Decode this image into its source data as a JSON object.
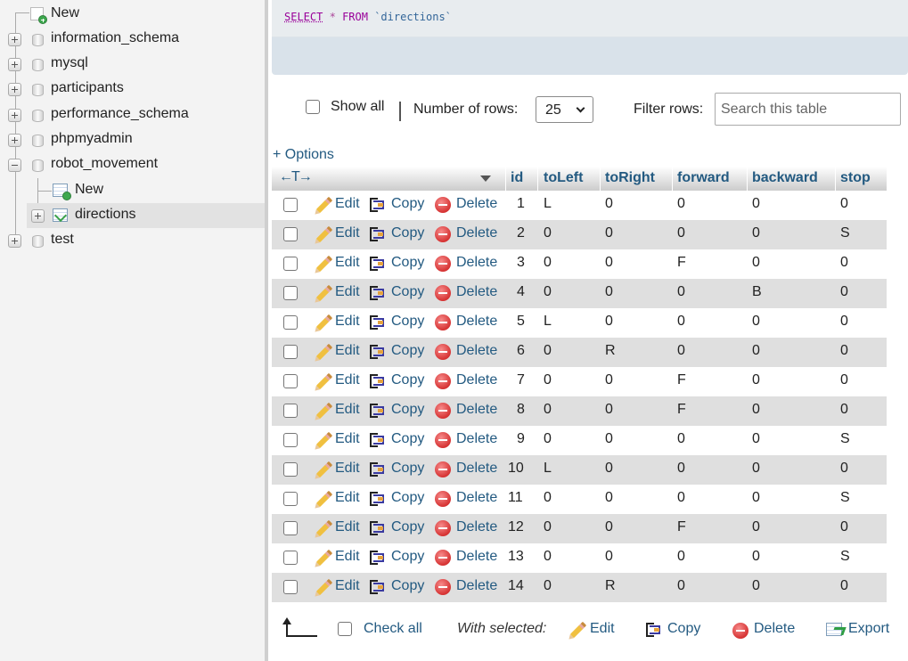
{
  "nav": {
    "new_label": "New",
    "databases": [
      "information_schema",
      "mysql",
      "participants",
      "performance_schema",
      "phpmyadmin",
      "robot_movement"
    ],
    "robot_children": {
      "new_label": "New",
      "table_label": "directions"
    },
    "last_db": "test"
  },
  "sql": {
    "select": "SELECT",
    "star": "*",
    "from": "FROM",
    "table": "`directions`"
  },
  "controls": {
    "show_all": "Show all",
    "number_of_rows": "Number of rows:",
    "rows_value": "25",
    "filter_rows": "Filter rows:",
    "search_placeholder": "Search this table",
    "options": "+ Options"
  },
  "table": {
    "headers": [
      "id",
      "toLeft",
      "toRight",
      "forward",
      "backward",
      "stop"
    ],
    "actions": {
      "edit": "Edit",
      "copy": "Copy",
      "delete": "Delete"
    },
    "rows": [
      [
        "1",
        "L",
        "0",
        "0",
        "0",
        "0"
      ],
      [
        "2",
        "0",
        "0",
        "0",
        "0",
        "S"
      ],
      [
        "3",
        "0",
        "0",
        "F",
        "0",
        "0"
      ],
      [
        "4",
        "0",
        "0",
        "0",
        "B",
        "0"
      ],
      [
        "5",
        "L",
        "0",
        "0",
        "0",
        "0"
      ],
      [
        "6",
        "0",
        "R",
        "0",
        "0",
        "0"
      ],
      [
        "7",
        "0",
        "0",
        "F",
        "0",
        "0"
      ],
      [
        "8",
        "0",
        "0",
        "F",
        "0",
        "0"
      ],
      [
        "9",
        "0",
        "0",
        "0",
        "0",
        "S"
      ],
      [
        "10",
        "L",
        "0",
        "0",
        "0",
        "0"
      ],
      [
        "11",
        "0",
        "0",
        "0",
        "0",
        "S"
      ],
      [
        "12",
        "0",
        "0",
        "F",
        "0",
        "0"
      ],
      [
        "13",
        "0",
        "0",
        "0",
        "0",
        "S"
      ],
      [
        "14",
        "0",
        "R",
        "0",
        "0",
        "0"
      ]
    ]
  },
  "footer": {
    "check_all": "Check all",
    "with_selected": "With selected:",
    "edit": "Edit",
    "copy": "Copy",
    "delete": "Delete",
    "export": "Export"
  },
  "colors": {
    "link": "#235a81",
    "row_alt": "#dfdfdf",
    "nav_bg": "#f3f3f3"
  }
}
